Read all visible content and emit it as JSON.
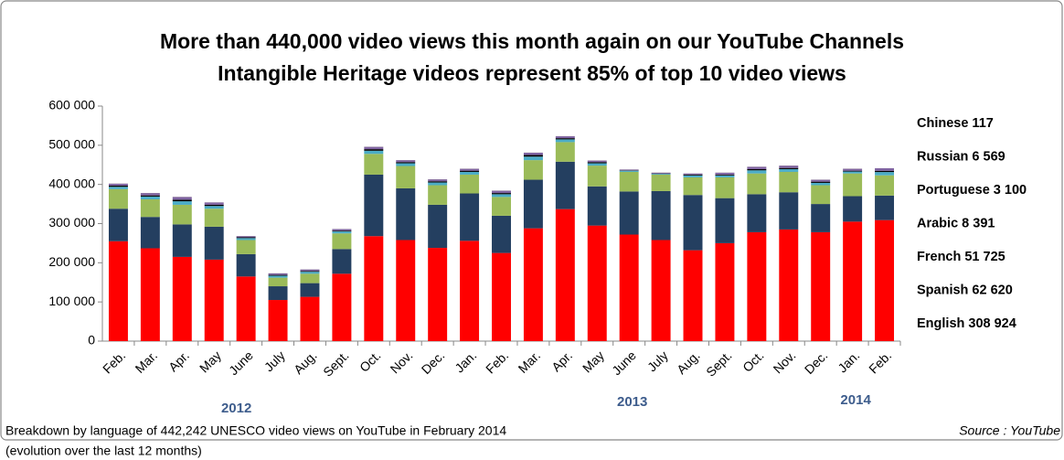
{
  "chart_data": {
    "type": "bar",
    "stacked": true,
    "title": [
      "More than 440,000  video views this month again on our YouTube Channels",
      "Intangible Heritage videos represent 85% of top 10  video views"
    ],
    "categories": [
      "Feb.",
      "Mar.",
      "Apr.",
      "May",
      "June",
      "July",
      "Aug.",
      "Sept.",
      "Oct.",
      "Nov.",
      "Dec.",
      "Jan.",
      "Feb.",
      "Mar.",
      "Apr.",
      "May",
      "June",
      "July",
      "Aug.",
      "Sept.",
      "Oct.",
      "Nov.",
      "Dec.",
      "Jan.",
      "Feb."
    ],
    "years": [
      "2012",
      "2013",
      "2014"
    ],
    "series": [
      {
        "name": "English 308 924",
        "color": "#ff0000",
        "values": [
          255000,
          237000,
          215000,
          208000,
          165000,
          105000,
          113000,
          172000,
          268000,
          258000,
          238000,
          256000,
          225000,
          288000,
          337000,
          295000,
          272000,
          258000,
          232000,
          250000,
          278000,
          285000,
          278000,
          305000,
          308924
        ]
      },
      {
        "name": "Spanish 62 620",
        "color": "#243f60",
        "values": [
          83000,
          80000,
          83000,
          84000,
          57000,
          35000,
          35000,
          63000,
          157000,
          132000,
          110000,
          121000,
          95000,
          124000,
          121000,
          100000,
          110000,
          125000,
          141000,
          115000,
          97000,
          95000,
          72000,
          65000,
          62620
        ]
      },
      {
        "name": "French 51 725",
        "color": "#9bbb59",
        "values": [
          50000,
          45000,
          50000,
          46000,
          36000,
          22000,
          24000,
          40000,
          53000,
          57000,
          50000,
          48000,
          48000,
          50000,
          50000,
          53000,
          50000,
          42000,
          45000,
          53000,
          53000,
          52000,
          48000,
          58000,
          51725
        ]
      },
      {
        "name": "Arabic 8 391",
        "color": "#4bacc6",
        "values": [
          6000,
          7000,
          9000,
          7000,
          5000,
          5000,
          5000,
          5000,
          8000,
          7000,
          7000,
          7000,
          7000,
          9000,
          7000,
          6000,
          3000,
          2000,
          5000,
          5000,
          8000,
          7000,
          6000,
          5000,
          8391
        ]
      },
      {
        "name": "Portuguese 3 100",
        "color": "#000000",
        "values": [
          3000,
          3000,
          4000,
          3000,
          2000,
          2000,
          2000,
          2000,
          4000,
          3000,
          3000,
          3000,
          3000,
          4000,
          3000,
          3000,
          1000,
          1000,
          2000,
          2000,
          3000,
          3000,
          3000,
          2000,
          3100
        ]
      },
      {
        "name": "Russian 6 569",
        "color": "#8064a2",
        "values": [
          5000,
          6000,
          7000,
          6000,
          3000,
          4000,
          4000,
          4000,
          6000,
          5000,
          5000,
          5000,
          6000,
          6000,
          5000,
          4000,
          2000,
          2000,
          3000,
          5000,
          6000,
          6000,
          5000,
          5000,
          6569
        ]
      },
      {
        "name": "Chinese 117",
        "color": "#948a54",
        "values": [
          200,
          200,
          200,
          200,
          200,
          200,
          200,
          200,
          200,
          200,
          200,
          200,
          200,
          200,
          200,
          200,
          200,
          200,
          200,
          200,
          200,
          200,
          200,
          200,
          117
        ]
      }
    ],
    "ylim": [
      0,
      600000
    ],
    "yticks": [
      0,
      {
        "value": 100000,
        "label": "100 000"
      },
      {
        "value": 200000,
        "label": "200 000"
      },
      {
        "value": 300000,
        "label": "300 000"
      },
      {
        "value": 400000,
        "label": "400 000"
      },
      {
        "value": 500000,
        "label": "500 000"
      },
      {
        "value": 600000,
        "label": "600 000"
      }
    ],
    "grid": false,
    "legend": "right",
    "footnote": [
      "Breakdown by language of 442,242 UNESCO video views on YouTube in  February 2014",
      "(evolution over the last 12 months)"
    ],
    "source": "Source : YouTube"
  }
}
